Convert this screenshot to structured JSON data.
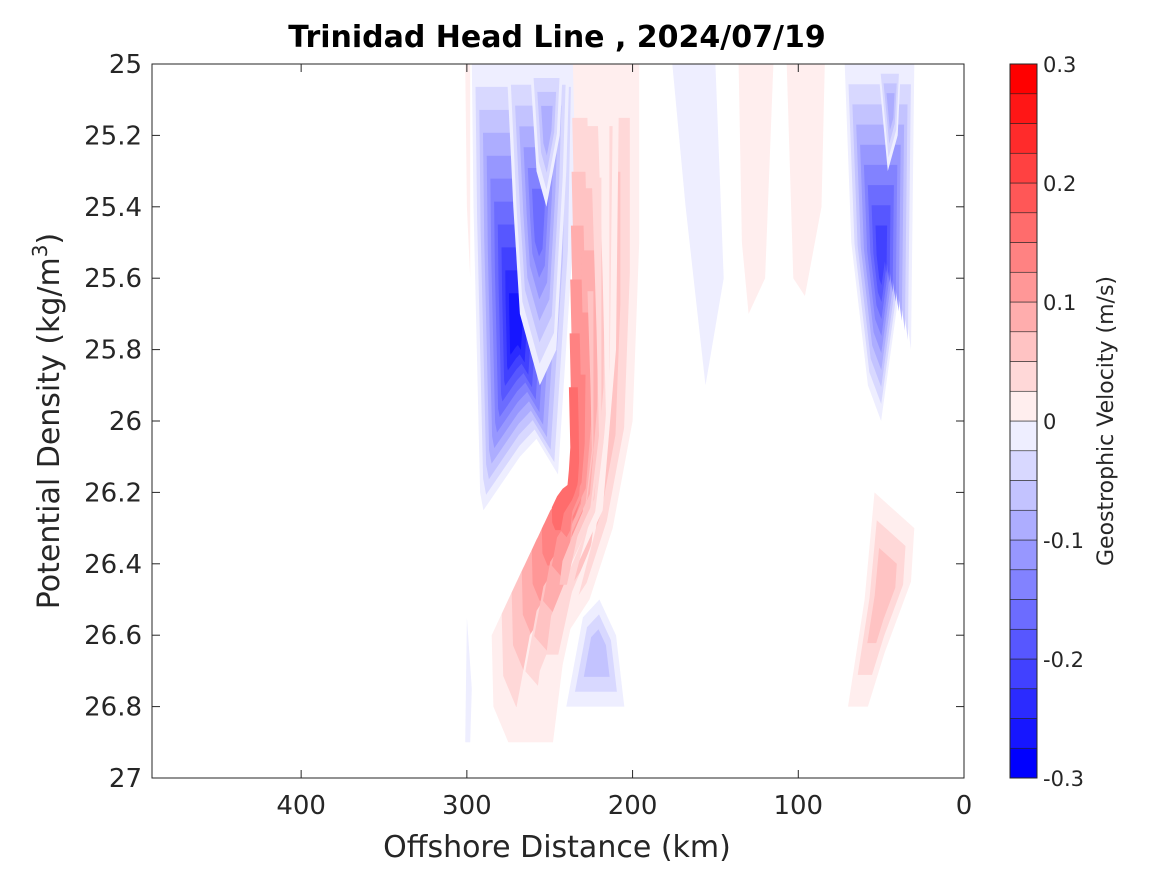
{
  "chart_data": {
    "type": "heatmap",
    "subtype": "filled-contour",
    "title": "Trinidad Head Line , 2024/07/19",
    "xlabel": "Offshore Distance (km)",
    "ylabel_main": "Potential Density (kg/m",
    "ylabel_sup": "3",
    "ylabel_close": ")",
    "xlim": [
      490,
      0
    ],
    "x_reversed": true,
    "ylim": [
      25,
      27
    ],
    "y_reversed": true,
    "x_ticks": [
      400,
      300,
      200,
      100,
      0
    ],
    "x_tick_labels": [
      "400",
      "300",
      "200",
      "100",
      "0"
    ],
    "y_ticks": [
      25,
      25.2,
      25.4,
      25.6,
      25.8,
      26,
      26.2,
      26.4,
      26.6,
      26.8,
      27
    ],
    "y_tick_labels": [
      "25",
      "25.2",
      "25.4",
      "25.6",
      "25.8",
      "26",
      "26.2",
      "26.4",
      "26.6",
      "26.8",
      "27"
    ],
    "grid": false,
    "colorbar": {
      "label": "Geostrophic Velocity (m/s)",
      "range": [
        -0.3,
        0.3
      ],
      "ticks": [
        0.3,
        0.2,
        0.1,
        0,
        -0.1,
        -0.2,
        -0.3
      ],
      "tick_labels": [
        "0.3",
        "0.2",
        "0.1",
        "0",
        "-0.1",
        "-0.2",
        "-0.3"
      ],
      "level_step": 0.025,
      "colors_low_to_high": [
        "#0000ff",
        "#1616ff",
        "#2b2bff",
        "#4141ff",
        "#5757ff",
        "#6c6cff",
        "#8282ff",
        "#9797ff",
        "#adadff",
        "#c3c3ff",
        "#d8d8ff",
        "#eeeeff",
        "#ffffff",
        "#ffffff",
        "#ffeeee",
        "#ffd8d8",
        "#ffc3c3",
        "#ffadad",
        "#ff9797",
        "#ff8282",
        "#ff6c6c",
        "#ff5757",
        "#ff4141",
        "#ff2b2b",
        "#ff1616",
        "#ff0000"
      ]
    },
    "features": [
      {
        "sign": "negative",
        "levels": 11,
        "points": [
          [
            297,
            25
          ],
          [
            296,
            25.4
          ],
          [
            294,
            25.8
          ],
          [
            292,
            26.2
          ],
          [
            290,
            26.25
          ],
          [
            268,
            26.1
          ],
          [
            258,
            26.05
          ],
          [
            245,
            26.15
          ],
          [
            236,
            25.5
          ],
          [
            234,
            25
          ]
        ]
      },
      {
        "sign": "negative",
        "levels": 7,
        "points": [
          [
            276,
            25
          ],
          [
            272,
            25.4
          ],
          [
            268,
            25.7
          ],
          [
            256,
            25.9
          ],
          [
            246,
            25.8
          ],
          [
            240,
            25.3
          ],
          [
            238,
            25
          ]
        ]
      },
      {
        "sign": "negative",
        "levels": 4,
        "points": [
          [
            262,
            25
          ],
          [
            258,
            25.3
          ],
          [
            252,
            25.4
          ],
          [
            244,
            25.2
          ],
          [
            242,
            25
          ]
        ]
      },
      {
        "sign": "positive",
        "levels": 7,
        "points": [
          [
            236,
            25
          ],
          [
            234,
            25.4
          ],
          [
            232,
            25.8
          ],
          [
            236,
            26.1
          ],
          [
            240,
            26.3
          ],
          [
            254,
            26.35
          ],
          [
            270,
            26.45
          ],
          [
            285,
            26.6
          ],
          [
            284,
            26.8
          ],
          [
            275,
            26.9
          ],
          [
            248,
            26.9
          ],
          [
            240,
            26.6
          ],
          [
            226,
            26.5
          ],
          [
            212,
            26.3
          ],
          [
            200,
            26.0
          ],
          [
            196,
            25.5
          ],
          [
            196,
            25
          ]
        ]
      },
      {
        "sign": "positive",
        "levels": 6,
        "points": [
          [
            228,
            25
          ],
          [
            225,
            25.6
          ],
          [
            224,
            26.0
          ],
          [
            228,
            26.3
          ],
          [
            242,
            26.45
          ],
          [
            262,
            26.6
          ],
          [
            270,
            26.8
          ],
          [
            255,
            26.88
          ],
          [
            246,
            26.8
          ],
          [
            238,
            26.45
          ],
          [
            218,
            26.25
          ],
          [
            210,
            25.8
          ],
          [
            208,
            25
          ]
        ]
      },
      {
        "sign": "positive",
        "levels": 3,
        "points": [
          [
            222,
            25
          ],
          [
            218,
            25.6
          ],
          [
            216,
            26.0
          ],
          [
            225,
            26.35
          ],
          [
            243,
            26.55
          ],
          [
            256,
            26.7
          ],
          [
            260,
            26.85
          ],
          [
            250,
            26.85
          ],
          [
            236,
            26.55
          ],
          [
            222,
            26.3
          ],
          [
            214,
            26.0
          ],
          [
            214,
            25
          ]
        ]
      },
      {
        "sign": "negative",
        "levels": 3,
        "points": [
          [
            240,
            26.8
          ],
          [
            230,
            26.55
          ],
          [
            220,
            26.5
          ],
          [
            210,
            26.6
          ],
          [
            205,
            26.8
          ]
        ]
      },
      {
        "sign": "negative",
        "levels": 1,
        "points": [
          [
            300,
            26.55
          ],
          [
            297,
            26.75
          ],
          [
            298,
            26.9
          ],
          [
            301,
            26.9
          ]
        ]
      },
      {
        "sign": "negative",
        "levels": 1,
        "points": [
          [
            176,
            25
          ],
          [
            168,
            25.4
          ],
          [
            156,
            25.9
          ],
          [
            145,
            25.6
          ],
          [
            150,
            25
          ]
        ]
      },
      {
        "sign": "negative",
        "levels": 1,
        "points": [
          [
            170,
            25
          ],
          [
            166,
            25.3
          ],
          [
            154,
            25.3
          ],
          [
            158,
            25
          ]
        ]
      },
      {
        "sign": "positive",
        "levels": 1,
        "points": [
          [
            136,
            25
          ],
          [
            134,
            25.5
          ],
          [
            130,
            25.7
          ],
          [
            120,
            25.6
          ],
          [
            115,
            25
          ]
        ]
      },
      {
        "sign": "positive",
        "levels": 1,
        "points": [
          [
            107,
            25
          ],
          [
            103,
            25.6
          ],
          [
            96,
            25.65
          ],
          [
            86,
            25.4
          ],
          [
            84,
            25
          ]
        ]
      },
      {
        "sign": "negative",
        "levels": 9,
        "points": [
          [
            72,
            25
          ],
          [
            68,
            25.5
          ],
          [
            58,
            25.9
          ],
          [
            50,
            26.0
          ],
          [
            38,
            25.6
          ],
          [
            32,
            25.8
          ],
          [
            30,
            25
          ]
        ]
      },
      {
        "sign": "negative",
        "levels": 4,
        "points": [
          [
            52,
            25
          ],
          [
            46,
            25.3
          ],
          [
            40,
            25.2
          ],
          [
            38,
            25
          ]
        ]
      },
      {
        "sign": "positive",
        "levels": 3,
        "points": [
          [
            70,
            26.8
          ],
          [
            60,
            26.5
          ],
          [
            56,
            26.3
          ],
          [
            54,
            26.2
          ],
          [
            42,
            26.25
          ],
          [
            30,
            26.3
          ],
          [
            32,
            26.45
          ],
          [
            40,
            26.55
          ],
          [
            48,
            26.65
          ],
          [
            58,
            26.8
          ]
        ]
      },
      {
        "sign": "positive",
        "levels": 1,
        "points": [
          [
            301,
            25
          ],
          [
            300,
            25.4
          ],
          [
            298,
            25.6
          ],
          [
            298,
            25
          ]
        ]
      }
    ]
  }
}
